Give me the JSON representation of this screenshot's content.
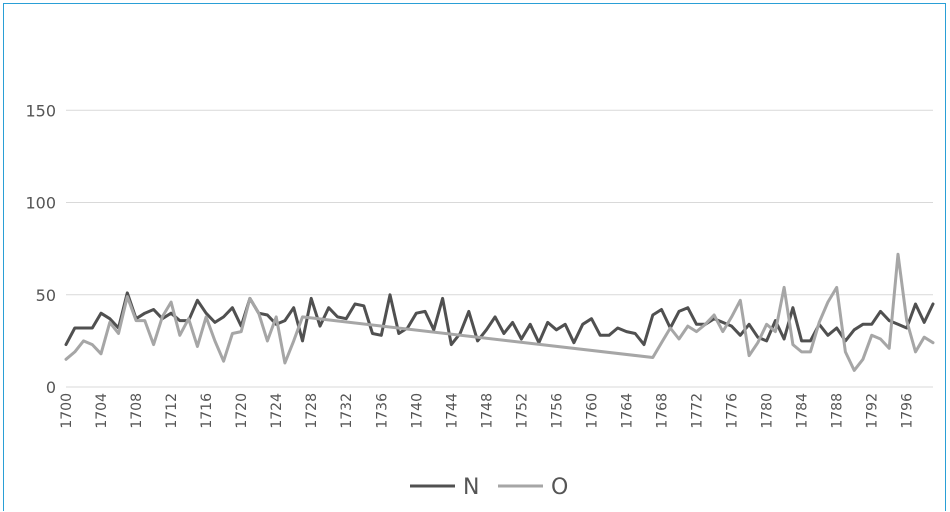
{
  "chart_data": {
    "type": "line",
    "title": "",
    "xlabel": "",
    "ylabel": "",
    "ylim": [
      0,
      200
    ],
    "yticks": [
      0,
      50,
      100,
      150
    ],
    "xlim": [
      1700,
      1799
    ],
    "xtick_labels": [
      "1700",
      "1704",
      "1708",
      "1712",
      "1716",
      "1720",
      "1724",
      "1728",
      "1732",
      "1736",
      "1740",
      "1744",
      "1748",
      "1752",
      "1756",
      "1760",
      "1764",
      "1768",
      "1772",
      "1776",
      "1780",
      "1784",
      "1788",
      "1792",
      "1796"
    ],
    "grid": true,
    "legend_position": "bottom",
    "series": [
      {
        "name": "N",
        "color": "#505050",
        "x": [
          1700,
          1701,
          1702,
          1703,
          1704,
          1705,
          1706,
          1707,
          1708,
          1709,
          1710,
          1711,
          1712,
          1713,
          1714,
          1715,
          1716,
          1717,
          1718,
          1719,
          1720,
          1721,
          1722,
          1723,
          1724,
          1725,
          1726,
          1727,
          1728,
          1729,
          1730,
          1731,
          1732,
          1733,
          1734,
          1735,
          1736,
          1737,
          1738,
          1739,
          1740,
          1741,
          1742,
          1743,
          1744,
          1745,
          1746,
          1747,
          1748,
          1749,
          1750,
          1751,
          1752,
          1753,
          1754,
          1755,
          1756,
          1757,
          1758,
          1759,
          1760,
          1761,
          1762,
          1763,
          1764,
          1765,
          1766,
          1767,
          1768,
          1769,
          1770,
          1771,
          1772,
          1773,
          1774,
          1775,
          1776,
          1777,
          1778,
          1779,
          1780,
          1781,
          1782,
          1783,
          1784,
          1785,
          1786,
          1787,
          1788,
          1789,
          1790,
          1791,
          1792,
          1793,
          1794,
          1795,
          1796,
          1797,
          1798,
          1799
        ],
        "values": [
          23,
          32,
          32,
          32,
          40,
          37,
          32,
          51,
          37,
          40,
          42,
          37,
          40,
          36,
          36,
          47,
          40,
          35,
          38,
          43,
          33,
          48,
          40,
          39,
          34,
          36,
          43,
          25,
          48,
          33,
          43,
          38,
          37,
          45,
          44,
          29,
          28,
          50,
          29,
          32,
          40,
          41,
          31,
          48,
          23,
          29,
          41,
          25,
          31,
          38,
          29,
          35,
          26,
          34,
          24,
          35,
          31,
          34,
          24,
          34,
          37,
          28,
          28,
          32,
          30,
          29,
          23,
          39,
          42,
          32,
          41,
          43,
          34,
          34,
          37,
          35,
          33,
          28,
          34,
          27,
          25,
          36,
          26,
          43,
          25,
          25,
          34,
          28,
          32,
          25,
          31,
          34,
          34,
          41,
          36,
          34,
          32,
          45,
          35,
          45
        ]
      },
      {
        "name": "O",
        "color": "#a6a6a6",
        "x": [
          1700,
          1701,
          1702,
          1703,
          1704,
          1705,
          1706,
          1707,
          1708,
          1709,
          1710,
          1711,
          1712,
          1713,
          1714,
          1715,
          1716,
          1717,
          1718,
          1719,
          1720,
          1721,
          1722,
          1723,
          1724,
          1725,
          1726,
          1727,
          1767,
          1768,
          1769,
          1770,
          1771,
          1772,
          1773,
          1774,
          1775,
          1776,
          1777,
          1778,
          1779,
          1780,
          1781,
          1782,
          1783,
          1784,
          1785,
          1786,
          1787,
          1788,
          1789,
          1790,
          1791,
          1792,
          1793,
          1794,
          1795,
          1796,
          1797,
          1798,
          1799
        ],
        "values": [
          15,
          19,
          25,
          23,
          18,
          35,
          29,
          49,
          36,
          36,
          23,
          38,
          46,
          28,
          37,
          22,
          38,
          25,
          14,
          29,
          30,
          48,
          40,
          25,
          38,
          13,
          25,
          38,
          16,
          24,
          32,
          26,
          33,
          30,
          34,
          39,
          30,
          38,
          47,
          17,
          24,
          34,
          30,
          54,
          23,
          19,
          19,
          35,
          46,
          54,
          19,
          9,
          15,
          28,
          26,
          21,
          72,
          36,
          19,
          27,
          24
        ]
      }
    ]
  }
}
